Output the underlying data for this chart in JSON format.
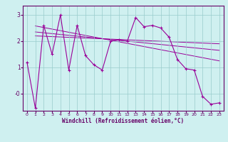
{
  "xlabel": "Windchill (Refroidissement éolien,°C)",
  "ylabel": "",
  "x_ticks": [
    0,
    1,
    2,
    3,
    4,
    5,
    6,
    7,
    8,
    9,
    10,
    11,
    12,
    13,
    14,
    15,
    16,
    17,
    18,
    19,
    20,
    21,
    22,
    23
  ],
  "ylim": [
    -0.65,
    3.35
  ],
  "xlim": [
    -0.5,
    23.5
  ],
  "bg_color": "#cff0f0",
  "line_color": "#990099",
  "grid_color": "#99cccc",
  "xlabel_color": "#660066",
  "data_y": [
    1.2,
    -0.55,
    2.6,
    1.5,
    3.0,
    0.9,
    2.6,
    1.45,
    1.1,
    0.9,
    2.0,
    2.05,
    2.0,
    2.9,
    2.55,
    2.6,
    2.5,
    2.15,
    1.3,
    0.95,
    0.9,
    -0.1,
    -0.4,
    -0.35
  ],
  "trend1_start_x": 1,
  "trend1_start_y": 2.58,
  "trend1_end_x": 23,
  "trend1_end_y": 1.25,
  "trend2_start_x": 1,
  "trend2_start_y": 2.35,
  "trend2_end_x": 23,
  "trend2_end_y": 1.65,
  "trend3_start_x": 1,
  "trend3_start_y": 2.2,
  "trend3_end_x": 23,
  "trend3_end_y": 1.9,
  "ytick_vals": [
    1,
    2,
    3
  ],
  "ytick_labels": [
    "1",
    "2",
    "3"
  ],
  "ytick_neg0_val": 0.0,
  "ytick_neg0_label": "-0"
}
